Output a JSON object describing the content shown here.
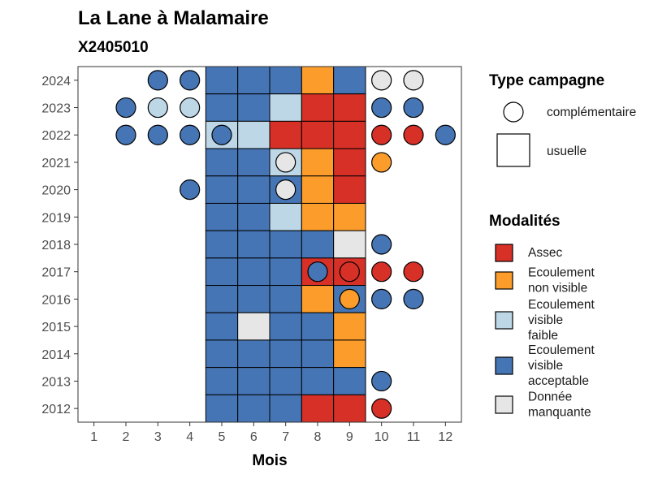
{
  "chart_data": {
    "type": "heatmap",
    "title": "La Lane à Malamaire",
    "subtitle": "X2405010",
    "xlabel": "Mois",
    "ylabel": "",
    "x_ticks": [
      1,
      2,
      3,
      4,
      5,
      6,
      7,
      8,
      9,
      10,
      11,
      12
    ],
    "y_ticks": [
      2024,
      2023,
      2022,
      2021,
      2020,
      2019,
      2018,
      2017,
      2016,
      2015,
      2014,
      2013,
      2012
    ],
    "xlim": [
      0.5,
      12.5
    ],
    "ylim": [
      2011.5,
      2024.5
    ],
    "grid": false,
    "legend_placement": "right",
    "modalites": [
      {
        "key": "assec",
        "label": [
          "Assec"
        ],
        "color": "#d73027"
      },
      {
        "key": "nonvisible",
        "label": [
          "Ecoulement",
          "non visible"
        ],
        "color": "#fc9d2b"
      },
      {
        "key": "faible",
        "label": [
          "Ecoulement",
          "visible",
          "faible"
        ],
        "color": "#bdd7e7"
      },
      {
        "key": "acceptable",
        "label": [
          "Ecoulement",
          "visible",
          "acceptable"
        ],
        "color": "#4575b4"
      },
      {
        "key": "manquante",
        "label": [
          "Donnée",
          "manquante"
        ],
        "color": "#e6e6e6"
      }
    ],
    "type_campagne_title": "Type campagne",
    "type_campagne": [
      {
        "key": "complementaire",
        "label": "complémentaire",
        "shape": "circle"
      },
      {
        "key": "usuelle",
        "label": "usuelle",
        "shape": "square"
      }
    ],
    "modalites_title": "Modalités",
    "usuelle": [
      {
        "year": 2024,
        "month": 5,
        "value": "acceptable"
      },
      {
        "year": 2024,
        "month": 6,
        "value": "acceptable"
      },
      {
        "year": 2024,
        "month": 7,
        "value": "acceptable"
      },
      {
        "year": 2024,
        "month": 8,
        "value": "nonvisible"
      },
      {
        "year": 2024,
        "month": 9,
        "value": "acceptable"
      },
      {
        "year": 2023,
        "month": 5,
        "value": "acceptable"
      },
      {
        "year": 2023,
        "month": 6,
        "value": "acceptable"
      },
      {
        "year": 2023,
        "month": 7,
        "value": "faible"
      },
      {
        "year": 2023,
        "month": 8,
        "value": "assec"
      },
      {
        "year": 2023,
        "month": 9,
        "value": "assec"
      },
      {
        "year": 2022,
        "month": 5,
        "value": "faible"
      },
      {
        "year": 2022,
        "month": 6,
        "value": "faible"
      },
      {
        "year": 2022,
        "month": 7,
        "value": "assec"
      },
      {
        "year": 2022,
        "month": 8,
        "value": "assec"
      },
      {
        "year": 2022,
        "month": 9,
        "value": "assec"
      },
      {
        "year": 2021,
        "month": 5,
        "value": "acceptable"
      },
      {
        "year": 2021,
        "month": 6,
        "value": "acceptable"
      },
      {
        "year": 2021,
        "month": 7,
        "value": "faible"
      },
      {
        "year": 2021,
        "month": 8,
        "value": "nonvisible"
      },
      {
        "year": 2021,
        "month": 9,
        "value": "assec"
      },
      {
        "year": 2020,
        "month": 5,
        "value": "acceptable"
      },
      {
        "year": 2020,
        "month": 6,
        "value": "acceptable"
      },
      {
        "year": 2020,
        "month": 7,
        "value": "acceptable"
      },
      {
        "year": 2020,
        "month": 8,
        "value": "nonvisible"
      },
      {
        "year": 2020,
        "month": 9,
        "value": "assec"
      },
      {
        "year": 2019,
        "month": 5,
        "value": "acceptable"
      },
      {
        "year": 2019,
        "month": 6,
        "value": "acceptable"
      },
      {
        "year": 2019,
        "month": 7,
        "value": "faible"
      },
      {
        "year": 2019,
        "month": 8,
        "value": "nonvisible"
      },
      {
        "year": 2019,
        "month": 9,
        "value": "nonvisible"
      },
      {
        "year": 2018,
        "month": 5,
        "value": "acceptable"
      },
      {
        "year": 2018,
        "month": 6,
        "value": "acceptable"
      },
      {
        "year": 2018,
        "month": 7,
        "value": "acceptable"
      },
      {
        "year": 2018,
        "month": 8,
        "value": "acceptable"
      },
      {
        "year": 2018,
        "month": 9,
        "value": "manquante"
      },
      {
        "year": 2017,
        "month": 5,
        "value": "acceptable"
      },
      {
        "year": 2017,
        "month": 6,
        "value": "acceptable"
      },
      {
        "year": 2017,
        "month": 7,
        "value": "acceptable"
      },
      {
        "year": 2017,
        "month": 8,
        "value": "assec"
      },
      {
        "year": 2017,
        "month": 9,
        "value": "assec"
      },
      {
        "year": 2016,
        "month": 5,
        "value": "acceptable"
      },
      {
        "year": 2016,
        "month": 6,
        "value": "acceptable"
      },
      {
        "year": 2016,
        "month": 7,
        "value": "acceptable"
      },
      {
        "year": 2016,
        "month": 8,
        "value": "nonvisible"
      },
      {
        "year": 2016,
        "month": 9,
        "value": "acceptable"
      },
      {
        "year": 2015,
        "month": 5,
        "value": "acceptable"
      },
      {
        "year": 2015,
        "month": 6,
        "value": "manquante"
      },
      {
        "year": 2015,
        "month": 7,
        "value": "acceptable"
      },
      {
        "year": 2015,
        "month": 8,
        "value": "acceptable"
      },
      {
        "year": 2015,
        "month": 9,
        "value": "nonvisible"
      },
      {
        "year": 2014,
        "month": 5,
        "value": "acceptable"
      },
      {
        "year": 2014,
        "month": 6,
        "value": "acceptable"
      },
      {
        "year": 2014,
        "month": 7,
        "value": "acceptable"
      },
      {
        "year": 2014,
        "month": 8,
        "value": "acceptable"
      },
      {
        "year": 2014,
        "month": 9,
        "value": "nonvisible"
      },
      {
        "year": 2013,
        "month": 5,
        "value": "acceptable"
      },
      {
        "year": 2013,
        "month": 6,
        "value": "acceptable"
      },
      {
        "year": 2013,
        "month": 7,
        "value": "acceptable"
      },
      {
        "year": 2013,
        "month": 8,
        "value": "acceptable"
      },
      {
        "year": 2013,
        "month": 9,
        "value": "acceptable"
      },
      {
        "year": 2012,
        "month": 5,
        "value": "acceptable"
      },
      {
        "year": 2012,
        "month": 6,
        "value": "acceptable"
      },
      {
        "year": 2012,
        "month": 7,
        "value": "acceptable"
      },
      {
        "year": 2012,
        "month": 8,
        "value": "assec"
      },
      {
        "year": 2012,
        "month": 9,
        "value": "assec"
      }
    ],
    "complementaire": [
      {
        "year": 2024,
        "month": 3,
        "value": "acceptable"
      },
      {
        "year": 2024,
        "month": 4,
        "value": "acceptable"
      },
      {
        "year": 2024,
        "month": 10,
        "value": "manquante"
      },
      {
        "year": 2024,
        "month": 11,
        "value": "manquante"
      },
      {
        "year": 2023,
        "month": 2,
        "value": "acceptable"
      },
      {
        "year": 2023,
        "month": 3,
        "value": "faible"
      },
      {
        "year": 2023,
        "month": 4,
        "value": "faible"
      },
      {
        "year": 2023,
        "month": 10,
        "value": "acceptable"
      },
      {
        "year": 2023,
        "month": 11,
        "value": "acceptable"
      },
      {
        "year": 2022,
        "month": 2,
        "value": "acceptable"
      },
      {
        "year": 2022,
        "month": 3,
        "value": "acceptable"
      },
      {
        "year": 2022,
        "month": 4,
        "value": "acceptable"
      },
      {
        "year": 2022,
        "month": 5,
        "value": "acceptable"
      },
      {
        "year": 2022,
        "month": 10,
        "value": "assec"
      },
      {
        "year": 2022,
        "month": 11,
        "value": "assec"
      },
      {
        "year": 2022,
        "month": 12,
        "value": "acceptable"
      },
      {
        "year": 2021,
        "month": 7,
        "value": "manquante"
      },
      {
        "year": 2021,
        "month": 10,
        "value": "nonvisible"
      },
      {
        "year": 2020,
        "month": 4,
        "value": "acceptable"
      },
      {
        "year": 2020,
        "month": 7,
        "value": "manquante"
      },
      {
        "year": 2018,
        "month": 10,
        "value": "acceptable"
      },
      {
        "year": 2017,
        "month": 8,
        "value": "acceptable"
      },
      {
        "year": 2017,
        "month": 9,
        "value": "assec"
      },
      {
        "year": 2017,
        "month": 10,
        "value": "assec"
      },
      {
        "year": 2017,
        "month": 11,
        "value": "assec"
      },
      {
        "year": 2016,
        "month": 9,
        "value": "nonvisible"
      },
      {
        "year": 2016,
        "month": 10,
        "value": "acceptable"
      },
      {
        "year": 2016,
        "month": 11,
        "value": "acceptable"
      },
      {
        "year": 2013,
        "month": 10,
        "value": "acceptable"
      },
      {
        "year": 2012,
        "month": 10,
        "value": "assec"
      }
    ]
  }
}
